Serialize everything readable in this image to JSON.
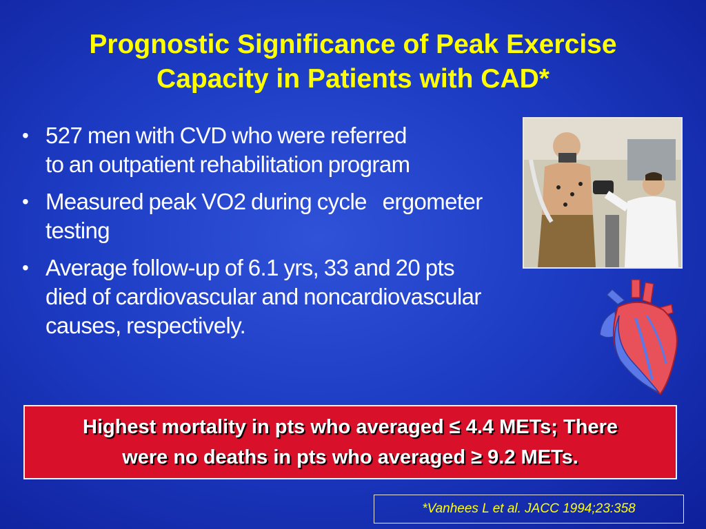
{
  "title_line1": "Prognostic Significance of Peak Exercise",
  "title_line2": "Capacity in Patients with CAD*",
  "bullet_symbol": "•",
  "bullets": [
    {
      "line1": "527 men with CVD who were referred",
      "line2": "to an outpatient rehabilitation program",
      "line3": ""
    },
    {
      "line1": "Measured peak VO2 during cycle   ergometer",
      "line2": "testing",
      "line3": ""
    },
    {
      "line1": "Average follow-up of 6.1 yrs, 33 and 20 pts",
      "line2": "died of cardiovascular and noncardiovascular",
      "line3": "causes, respectively."
    }
  ],
  "callout_line1": "Highest mortality in pts who averaged ≤ 4.4 METs; There",
  "callout_line2": "were no deaths in pts who averaged ≥ 9.2 METs.",
  "citation": "*Vanhees L et al. JACC 1994;23:358",
  "colors": {
    "title": "#ffff00",
    "callout_bg": "#d8102a",
    "background": "#1d3cc4"
  }
}
